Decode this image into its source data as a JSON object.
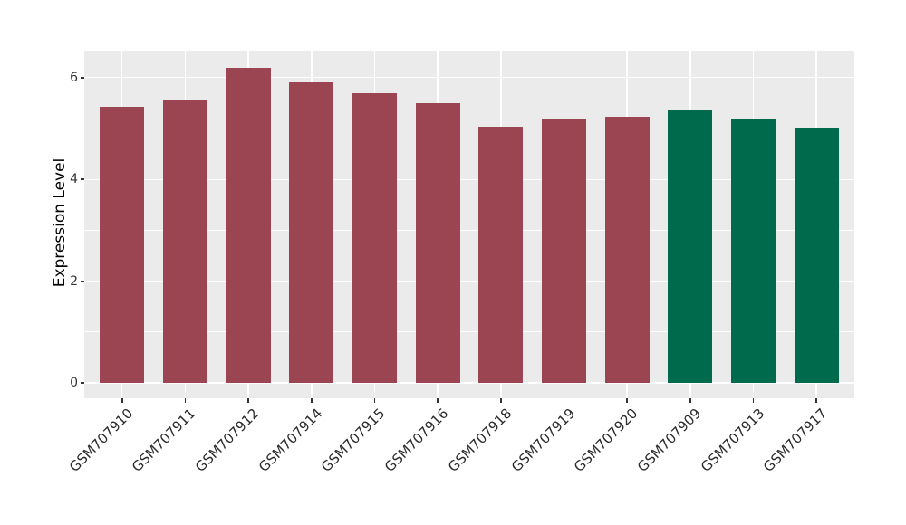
{
  "chart_data": {
    "type": "bar",
    "title": "",
    "xlabel": "",
    "ylabel": "Expression Level",
    "categories": [
      "GSM707910",
      "GSM707911",
      "GSM707912",
      "GSM707914",
      "GSM707915",
      "GSM707916",
      "GSM707918",
      "GSM707919",
      "GSM707920",
      "GSM707909",
      "GSM707913",
      "GSM707917"
    ],
    "values": [
      5.43,
      5.55,
      6.2,
      5.9,
      5.7,
      5.5,
      5.04,
      5.19,
      5.24,
      5.35,
      5.2,
      5.01
    ],
    "bar_colors": [
      "#9B4452",
      "#9B4452",
      "#9B4452",
      "#9B4452",
      "#9B4452",
      "#9B4452",
      "#9B4452",
      "#9B4452",
      "#9B4452",
      "#006A4C",
      "#006A4C",
      "#006A4C"
    ],
    "y_ticks": [
      0,
      2,
      4,
      6
    ],
    "y_minor_ticks": [
      1,
      3,
      5
    ],
    "ylim": [
      -0.31,
      6.52
    ],
    "legend": false,
    "grid": true,
    "colors": {
      "panel_bg": "#EBEBEB",
      "grid_major": "#FFFFFF",
      "grid_minor": "#FFFFFF",
      "bar_red": "#9B4452",
      "bar_green": "#006A4C",
      "axis_text": "#333333",
      "axis_title": "#000000",
      "tick_mark": "#333333",
      "figure_bg": "#FFFFFF"
    }
  }
}
